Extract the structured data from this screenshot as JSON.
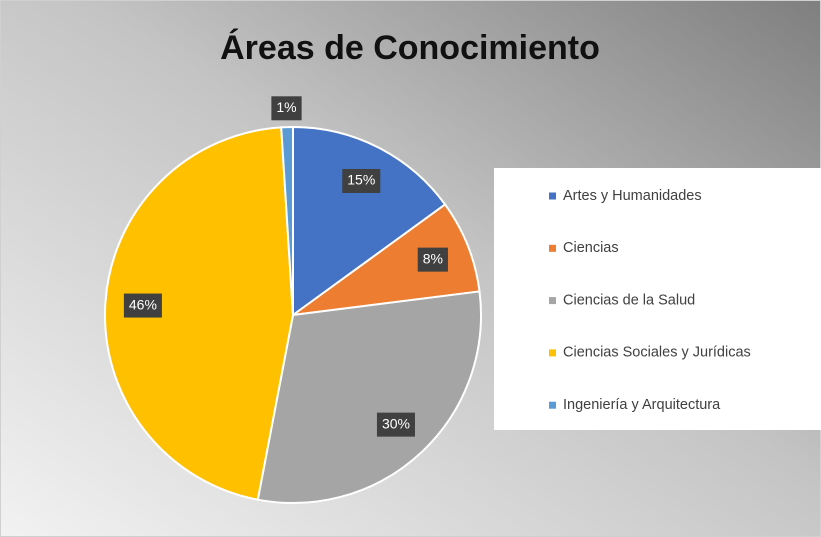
{
  "chart_data": {
    "type": "pie",
    "title": "Áreas de Conocimiento",
    "categories": [
      "Artes y Humanidades",
      "Ciencias",
      "Ciencias de la Salud",
      "Ciencias Sociales y Jurídicas",
      "Ingeniería y Arquitectura"
    ],
    "values": [
      15,
      8,
      30,
      46,
      1
    ],
    "value_labels": [
      "15%",
      "8%",
      "30%",
      "46%",
      "1%"
    ],
    "colors": [
      "#4472c4",
      "#ed7d31",
      "#a5a5a5",
      "#ffc000",
      "#5b9bd5"
    ],
    "legend": "right"
  }
}
